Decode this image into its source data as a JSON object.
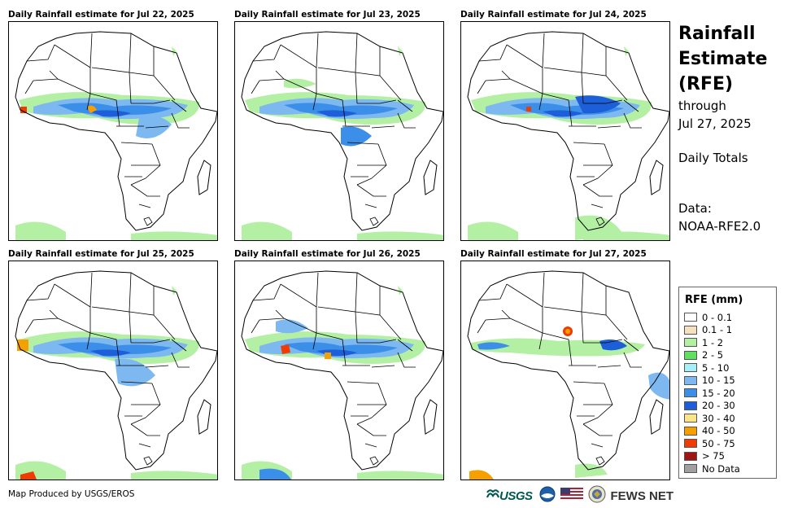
{
  "panels": [
    {
      "title": "Daily Rainfall estimate for Jul 22, 2025"
    },
    {
      "title": "Daily Rainfall estimate for Jul 23, 2025"
    },
    {
      "title": "Daily Rainfall estimate for Jul 24, 2025"
    },
    {
      "title": "Daily Rainfall estimate for Jul 25, 2025"
    },
    {
      "title": "Daily Rainfall estimate for Jul 26, 2025"
    },
    {
      "title": "Daily Rainfall estimate for Jul 27, 2025"
    }
  ],
  "sidebar": {
    "title_line1": "Rainfall",
    "title_line2": "Estimate",
    "title_line3": "(RFE)",
    "through_label": "through",
    "through_date": "Jul 27, 2025",
    "totals_label": "Daily Totals",
    "data_label": "Data:",
    "data_source": "NOAA-RFE2.0"
  },
  "legend": {
    "title": "RFE (mm)",
    "items": [
      {
        "label": "0 - 0.1",
        "color": "#ffffff"
      },
      {
        "label": "0.1 - 1",
        "color": "#f5e1c0"
      },
      {
        "label": "1 - 2",
        "color": "#b4f0a4"
      },
      {
        "label": "2 - 5",
        "color": "#5fe060"
      },
      {
        "label": "5 - 10",
        "color": "#a6eef8"
      },
      {
        "label": "10 - 15",
        "color": "#7db8f0"
      },
      {
        "label": "15 - 20",
        "color": "#3c8fe8"
      },
      {
        "label": "20 - 30",
        "color": "#1c5fd8"
      },
      {
        "label": "30 - 40",
        "color": "#fbe58a"
      },
      {
        "label": "40 - 50",
        "color": "#f5a000"
      },
      {
        "label": "50 - 75",
        "color": "#f03c00"
      },
      {
        "label": "> 75",
        "color": "#a01414"
      },
      {
        "label": "No Data",
        "color": "#a0a0a0"
      }
    ]
  },
  "footer": {
    "credit": "Map Produced by USGS/EROS",
    "usgs_label": "USGS",
    "fews_label": "FEWS NET"
  }
}
